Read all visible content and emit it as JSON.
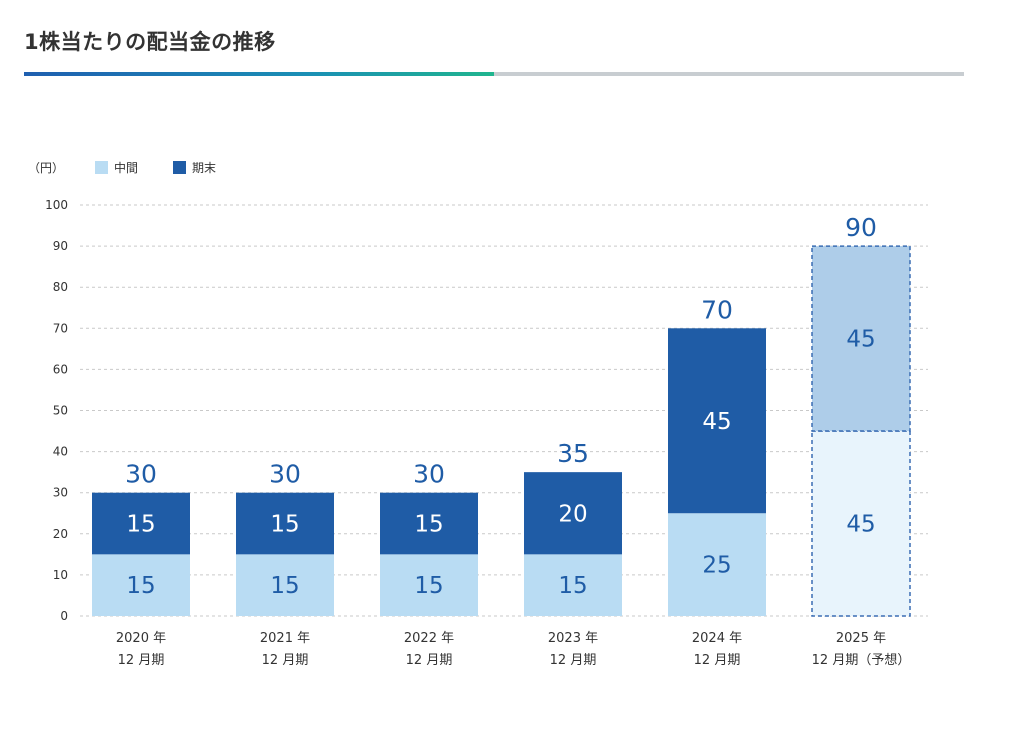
{
  "page": {
    "title": "1株当たりの配当金の推移"
  },
  "colors": {
    "interim": "#b9dcf3",
    "final": "#1f5ca6",
    "forecast_interim": "#e8f4fc",
    "forecast_final": "#aecde9",
    "forecast_border": "#3a6db3",
    "total_label": "#1f5ca6",
    "grid": "#c9c9c9"
  },
  "chart_data": {
    "type": "bar",
    "stacked": true,
    "unit_label": "（円）",
    "categories": [
      [
        "2020 年",
        "12 月期"
      ],
      [
        "2021 年",
        "12 月期"
      ],
      [
        "2022 年",
        "12 月期"
      ],
      [
        "2023 年",
        "12 月期"
      ],
      [
        "2024 年",
        "12 月期"
      ],
      [
        "2025 年",
        "12 月期（予想）"
      ]
    ],
    "series": [
      {
        "name": "中間",
        "values": [
          15,
          15,
          15,
          15,
          25,
          45
        ]
      },
      {
        "name": "期末",
        "values": [
          15,
          15,
          15,
          20,
          45,
          45
        ]
      }
    ],
    "totals": [
      30,
      30,
      30,
      35,
      70,
      90
    ],
    "forecast_index": [
      5
    ],
    "ylim": [
      0,
      100
    ],
    "yticks": [
      0,
      10,
      20,
      30,
      40,
      50,
      60,
      70,
      80,
      90,
      100
    ],
    "grid": true,
    "legend_position": "top-left"
  }
}
